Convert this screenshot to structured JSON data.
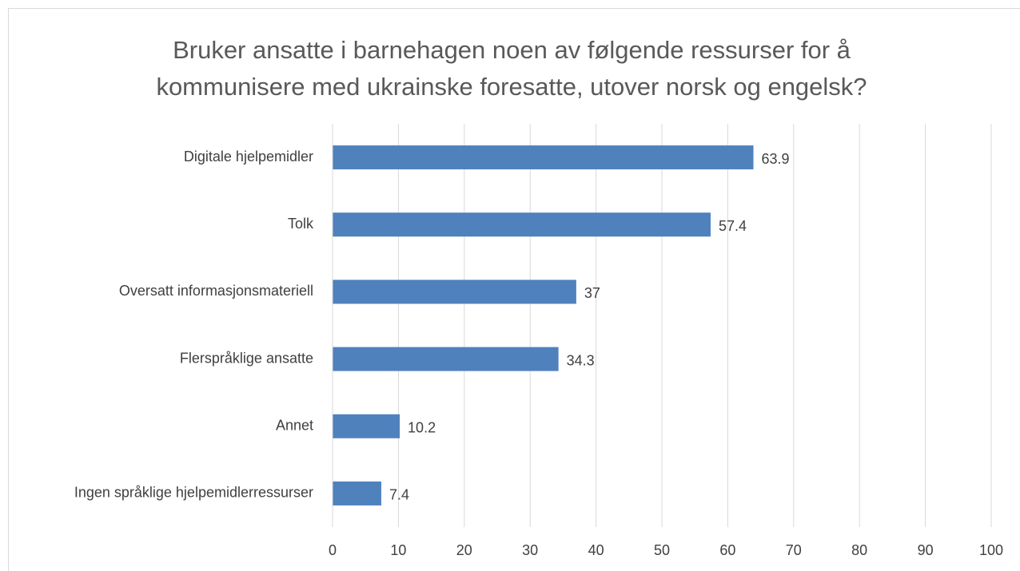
{
  "chart_data": {
    "type": "bar",
    "orientation": "horizontal",
    "title": "Bruker ansatte i barnehagen noen av følgende ressurser for å kommunisere med ukrainske foresatte, utover norsk og engelsk?",
    "categories": [
      "Digitale hjelpemidler",
      "Tolk",
      "Oversatt informasjonsmateriell",
      "Flerspråklige ansatte",
      "Annet",
      "Ingen språklige hjelpemidlerressurser"
    ],
    "values": [
      63.9,
      57.4,
      37,
      34.3,
      10.2,
      7.4
    ],
    "color": "#4f81bd",
    "xlim": [
      0,
      100
    ],
    "xticks": [
      0,
      10,
      20,
      30,
      40,
      50,
      60,
      70,
      80,
      90,
      100
    ],
    "grid": true
  }
}
